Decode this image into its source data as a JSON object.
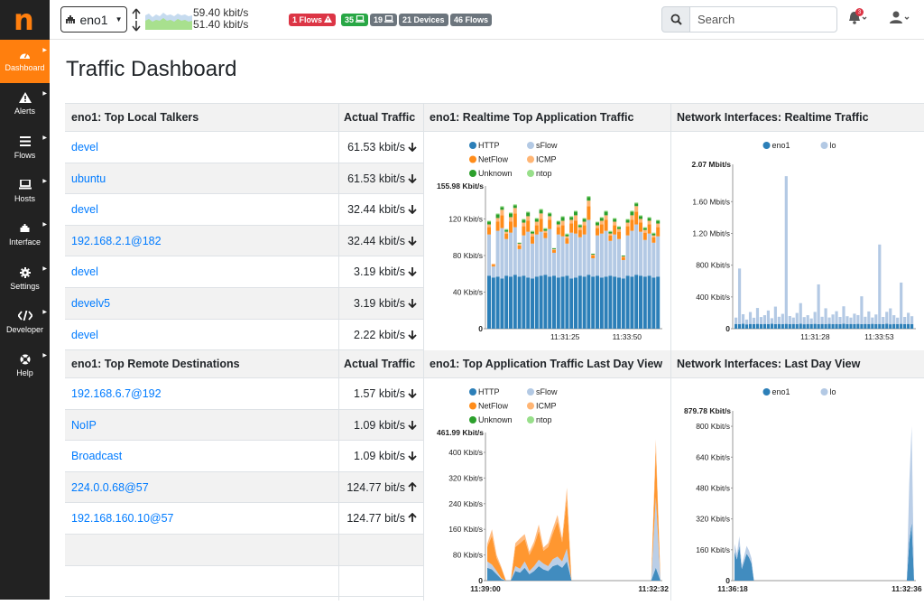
{
  "logo": "n",
  "sidebar": {
    "items": [
      {
        "label": "Dashboard",
        "icon": "dashboard-icon",
        "active": true
      },
      {
        "label": "Alerts",
        "icon": "alert-icon"
      },
      {
        "label": "Flows",
        "icon": "flows-icon"
      },
      {
        "label": "Hosts",
        "icon": "laptop-icon"
      },
      {
        "label": "Interface",
        "icon": "ethernet-icon"
      },
      {
        "label": "Settings",
        "icon": "gear-icon"
      },
      {
        "label": "Developer",
        "icon": "code-icon"
      },
      {
        "label": "Help",
        "icon": "lifebuoy-icon"
      }
    ]
  },
  "topbar": {
    "interface": "eno1",
    "rate_up": "59.40 kbit/s",
    "rate_down": "51.40 kbit/s",
    "badges": [
      {
        "label": "1 Flows",
        "color": "#dc3545",
        "icon": "warning-icon"
      },
      {
        "label": "35",
        "color": "#28a745",
        "icon": "laptop-icon"
      },
      {
        "label": "19",
        "color": "#6c757d",
        "icon": "laptop-icon"
      },
      {
        "label": "21 Devices",
        "color": "#6c757d"
      },
      {
        "label": "46 Flows",
        "color": "#6c757d"
      }
    ],
    "search_placeholder": "Search",
    "notifications_count": "3"
  },
  "page_title": "Traffic Dashboard",
  "talkers": {
    "header": "eno1: Top Local Talkers",
    "traffic_header": "Actual Traffic",
    "rows": [
      {
        "name": "devel",
        "traffic": "61.53 kbit/s",
        "dir": "down"
      },
      {
        "name": "ubuntu",
        "traffic": "61.53 kbit/s",
        "dir": "down"
      },
      {
        "name": "devel",
        "traffic": "32.44 kbit/s",
        "dir": "down"
      },
      {
        "name": "192.168.2.1@182",
        "traffic": "32.44 kbit/s",
        "dir": "down"
      },
      {
        "name": "devel",
        "traffic": "3.19 kbit/s",
        "dir": "down"
      },
      {
        "name": "develv5",
        "traffic": "3.19 kbit/s",
        "dir": "down"
      },
      {
        "name": "devel",
        "traffic": "2.22 kbit/s",
        "dir": "down"
      }
    ]
  },
  "destinations": {
    "header": "eno1: Top Remote Destinations",
    "traffic_header": "Actual Traffic",
    "rows": [
      {
        "name": "192.168.6.7@192",
        "traffic": "1.57 kbit/s",
        "dir": "down"
      },
      {
        "name": "NoIP",
        "traffic": "1.09 kbit/s",
        "dir": "down"
      },
      {
        "name": "Broadcast",
        "traffic": "1.09 kbit/s",
        "dir": "down"
      },
      {
        "name": "224.0.0.68@57",
        "traffic": "124.77 bit/s",
        "dir": "up"
      },
      {
        "name": "192.168.160.10@57",
        "traffic": "124.77 bit/s",
        "dir": "up"
      }
    ]
  },
  "colors": {
    "HTTP": "#2c7fb8",
    "sFlow": "#b3c9e4",
    "NetFlow": "#ff8c1a",
    "ICMP": "#ffb574",
    "Unknown": "#2ca02c",
    "ntop": "#98df8a",
    "eno1": "#2c7fb8",
    "lo": "#b3c9e4"
  },
  "chart_data": [
    {
      "id": "app_realtime",
      "title": "eno1: Realtime Top Application Traffic",
      "type": "bar",
      "stacked": true,
      "legend": [
        "HTTP",
        "sFlow",
        "NetFlow",
        "ICMP",
        "Unknown",
        "ntop"
      ],
      "legend_position": "top",
      "ymax_label": "155.98 Kbit/s",
      "yticks": [
        "0",
        "40 Kbit/s",
        "80 Kbit/s",
        "120 Kbit/s"
      ],
      "ytick_values": [
        0,
        40,
        80,
        120
      ],
      "ymax": 156,
      "xticks": [
        "11:31:25",
        "11:33:50"
      ],
      "series": [
        {
          "name": "HTTP",
          "values": [
            58,
            56,
            57,
            55,
            58,
            57,
            59,
            57,
            58,
            56,
            55,
            57,
            58,
            59,
            57,
            58,
            56,
            57,
            58,
            55,
            56,
            58,
            57,
            59,
            57,
            58,
            56,
            57,
            58,
            57,
            56,
            55,
            58,
            57,
            59,
            58,
            57,
            58,
            56,
            57
          ]
        },
        {
          "name": "sFlow",
          "values": [
            45,
            12,
            50,
            55,
            40,
            48,
            52,
            30,
            44,
            50,
            38,
            46,
            48,
            40,
            52,
            25,
            47,
            44,
            35,
            50,
            48,
            42,
            46,
            60,
            20,
            44,
            48,
            50,
            38,
            46,
            42,
            20,
            44,
            50,
            55,
            48,
            40,
            46,
            38,
            44
          ]
        },
        {
          "name": "NetFlow",
          "values": [
            8,
            2,
            10,
            14,
            6,
            12,
            15,
            4,
            10,
            12,
            8,
            10,
            14,
            6,
            10,
            3,
            8,
            12,
            6,
            10,
            14,
            8,
            10,
            15,
            3,
            8,
            10,
            12,
            6,
            10,
            8,
            3,
            10,
            12,
            14,
            10,
            8,
            10,
            6,
            10
          ]
        },
        {
          "name": "ICMP",
          "values": [
            3,
            1,
            4,
            6,
            2,
            5,
            6,
            2,
            4,
            5,
            3,
            4,
            6,
            2,
            4,
            1,
            3,
            5,
            2,
            4,
            6,
            3,
            4,
            6,
            1,
            3,
            4,
            5,
            2,
            4,
            3,
            1,
            4,
            5,
            6,
            4,
            3,
            4,
            2,
            4
          ]
        },
        {
          "name": "Unknown",
          "values": [
            3,
            0,
            4,
            3,
            2,
            4,
            3,
            1,
            3,
            4,
            2,
            3,
            4,
            2,
            3,
            1,
            3,
            4,
            2,
            3,
            4,
            2,
            3,
            4,
            1,
            3,
            3,
            4,
            2,
            3,
            2,
            1,
            3,
            4,
            3,
            3,
            2,
            3,
            2,
            3
          ]
        },
        {
          "name": "ntop",
          "values": [
            1,
            0,
            1,
            1,
            1,
            1,
            1,
            0,
            1,
            1,
            1,
            1,
            1,
            1,
            1,
            0,
            1,
            1,
            1,
            1,
            1,
            1,
            1,
            1,
            0,
            1,
            1,
            1,
            1,
            1,
            1,
            0,
            1,
            1,
            1,
            1,
            1,
            1,
            1,
            1
          ]
        }
      ]
    },
    {
      "id": "if_realtime",
      "title": "Network Interfaces: Realtime Traffic",
      "type": "bar",
      "stacked": true,
      "legend": [
        "eno1",
        "lo"
      ],
      "legend_position": "top",
      "ymax_label": "2.07 Mbit/s",
      "yticks": [
        "0",
        "400 Kbit/s",
        "800 Kbit/s",
        "1.20 Mbit/s",
        "1.60 Mbit/s"
      ],
      "ytick_values": [
        0,
        400,
        800,
        1200,
        1600
      ],
      "ymax": 2070,
      "xticks": [
        "11:31:28",
        "11:33:53"
      ],
      "series": [
        {
          "name": "eno1",
          "values": [
            60,
            58,
            62,
            55,
            60,
            58,
            61,
            57,
            60,
            59,
            62,
            58,
            60,
            57,
            61,
            59,
            60,
            58,
            62,
            56,
            60,
            59,
            61,
            58,
            60,
            57,
            61,
            59,
            60,
            58,
            62,
            57,
            60,
            59,
            61,
            58,
            60,
            57,
            61,
            59,
            60,
            58,
            62,
            56,
            60,
            59,
            61,
            58,
            60,
            57
          ]
        },
        {
          "name": "lo",
          "values": [
            80,
            700,
            120,
            60,
            150,
            80,
            200,
            90,
            110,
            170,
            70,
            220,
            90,
            130,
            1860,
            100,
            80,
            140,
            260,
            90,
            110,
            70,
            150,
            500,
            90,
            200,
            80,
            120,
            160,
            90,
            220,
            100,
            80,
            130,
            110,
            350,
            90,
            160,
            80,
            120,
            1000,
            90,
            150,
            200,
            110,
            80,
            520,
            90,
            140,
            100
          ]
        }
      ]
    },
    {
      "id": "app_day",
      "title": "eno1: Top Application Traffic Last Day View",
      "type": "area",
      "stacked": true,
      "legend": [
        "HTTP",
        "sFlow",
        "NetFlow",
        "ICMP",
        "Unknown",
        "ntop"
      ],
      "legend_position": "top",
      "ymax_label": "461.99 Kbit/s",
      "yticks": [
        "0",
        "80 Kbit/s",
        "160 Kbit/s",
        "240 Kbit/s",
        "320 Kbit/s",
        "400 Kbit/s"
      ],
      "ytick_values": [
        0,
        80,
        160,
        240,
        320,
        400
      ],
      "ymax": 462,
      "xticks": [
        "11:39:00",
        "11:32:32"
      ],
      "series": [
        {
          "name": "HTTP",
          "values": [
            40,
            35,
            20,
            5,
            0,
            0,
            30,
            25,
            40,
            20,
            30,
            45,
            35,
            30,
            45,
            50,
            40,
            60,
            0,
            0,
            0,
            0,
            0,
            0,
            0,
            0,
            0,
            0,
            0,
            0,
            0,
            0,
            0,
            0,
            0,
            0,
            40,
            0
          ]
        },
        {
          "name": "sFlow",
          "values": [
            20,
            15,
            10,
            3,
            0,
            0,
            15,
            12,
            20,
            10,
            15,
            20,
            18,
            15,
            22,
            25,
            20,
            40,
            0,
            0,
            0,
            0,
            0,
            0,
            0,
            0,
            0,
            0,
            0,
            0,
            0,
            0,
            0,
            0,
            0,
            0,
            220,
            0
          ]
        },
        {
          "name": "NetFlow",
          "values": [
            45,
            90,
            40,
            30,
            0,
            0,
            60,
            80,
            70,
            50,
            65,
            90,
            40,
            60,
            80,
            110,
            60,
            160,
            0,
            0,
            0,
            0,
            0,
            0,
            0,
            0,
            0,
            0,
            0,
            0,
            0,
            0,
            0,
            0,
            0,
            0,
            150,
            0
          ]
        },
        {
          "name": "ICMP",
          "values": [
            10,
            20,
            10,
            5,
            0,
            0,
            12,
            15,
            15,
            10,
            12,
            20,
            10,
            12,
            15,
            20,
            12,
            30,
            0,
            0,
            0,
            0,
            0,
            0,
            0,
            0,
            0,
            0,
            0,
            0,
            0,
            0,
            0,
            0,
            0,
            0,
            30,
            0
          ]
        }
      ]
    },
    {
      "id": "if_day",
      "title": "Network Interfaces: Last Day View",
      "type": "area",
      "stacked": true,
      "legend": [
        "eno1",
        "lo"
      ],
      "legend_position": "top",
      "ymax_label": "879.78 Kbit/s",
      "yticks": [
        "0",
        "160 Kbit/s",
        "320 Kbit/s",
        "480 Kbit/s",
        "640 Kbit/s",
        "800 Kbit/s"
      ],
      "ytick_values": [
        0,
        160,
        320,
        480,
        640,
        800
      ],
      "ymax": 880,
      "xticks": [
        "11:36:18",
        "11:32:36"
      ],
      "series": [
        {
          "name": "eno1",
          "values": [
            150,
            110,
            180,
            60,
            100,
            140,
            120,
            90,
            0,
            0,
            0,
            0,
            0,
            0,
            0,
            0,
            0,
            0,
            0,
            0,
            0,
            0,
            0,
            0,
            0,
            0,
            0,
            0,
            0,
            0,
            0,
            0,
            0,
            0,
            0,
            0,
            0,
            0,
            0,
            0,
            0,
            0,
            0,
            0,
            0,
            0,
            0,
            0,
            0,
            0,
            0,
            0,
            0,
            0,
            0,
            0,
            0,
            0,
            0,
            0,
            0,
            0,
            0,
            0,
            0,
            0,
            0,
            0,
            0,
            0,
            0,
            0,
            200,
            300,
            0
          ]
        },
        {
          "name": "lo",
          "values": [
            40,
            30,
            50,
            20,
            30,
            40,
            35,
            25,
            0,
            0,
            0,
            0,
            0,
            0,
            0,
            0,
            0,
            0,
            0,
            0,
            0,
            0,
            0,
            0,
            0,
            0,
            0,
            0,
            0,
            0,
            0,
            0,
            0,
            0,
            0,
            0,
            0,
            0,
            0,
            0,
            0,
            0,
            0,
            0,
            0,
            0,
            0,
            0,
            0,
            0,
            0,
            0,
            0,
            0,
            0,
            0,
            0,
            0,
            0,
            0,
            0,
            0,
            0,
            0,
            0,
            0,
            0,
            0,
            0,
            0,
            0,
            0,
            300,
            500,
            0
          ]
        }
      ]
    }
  ]
}
